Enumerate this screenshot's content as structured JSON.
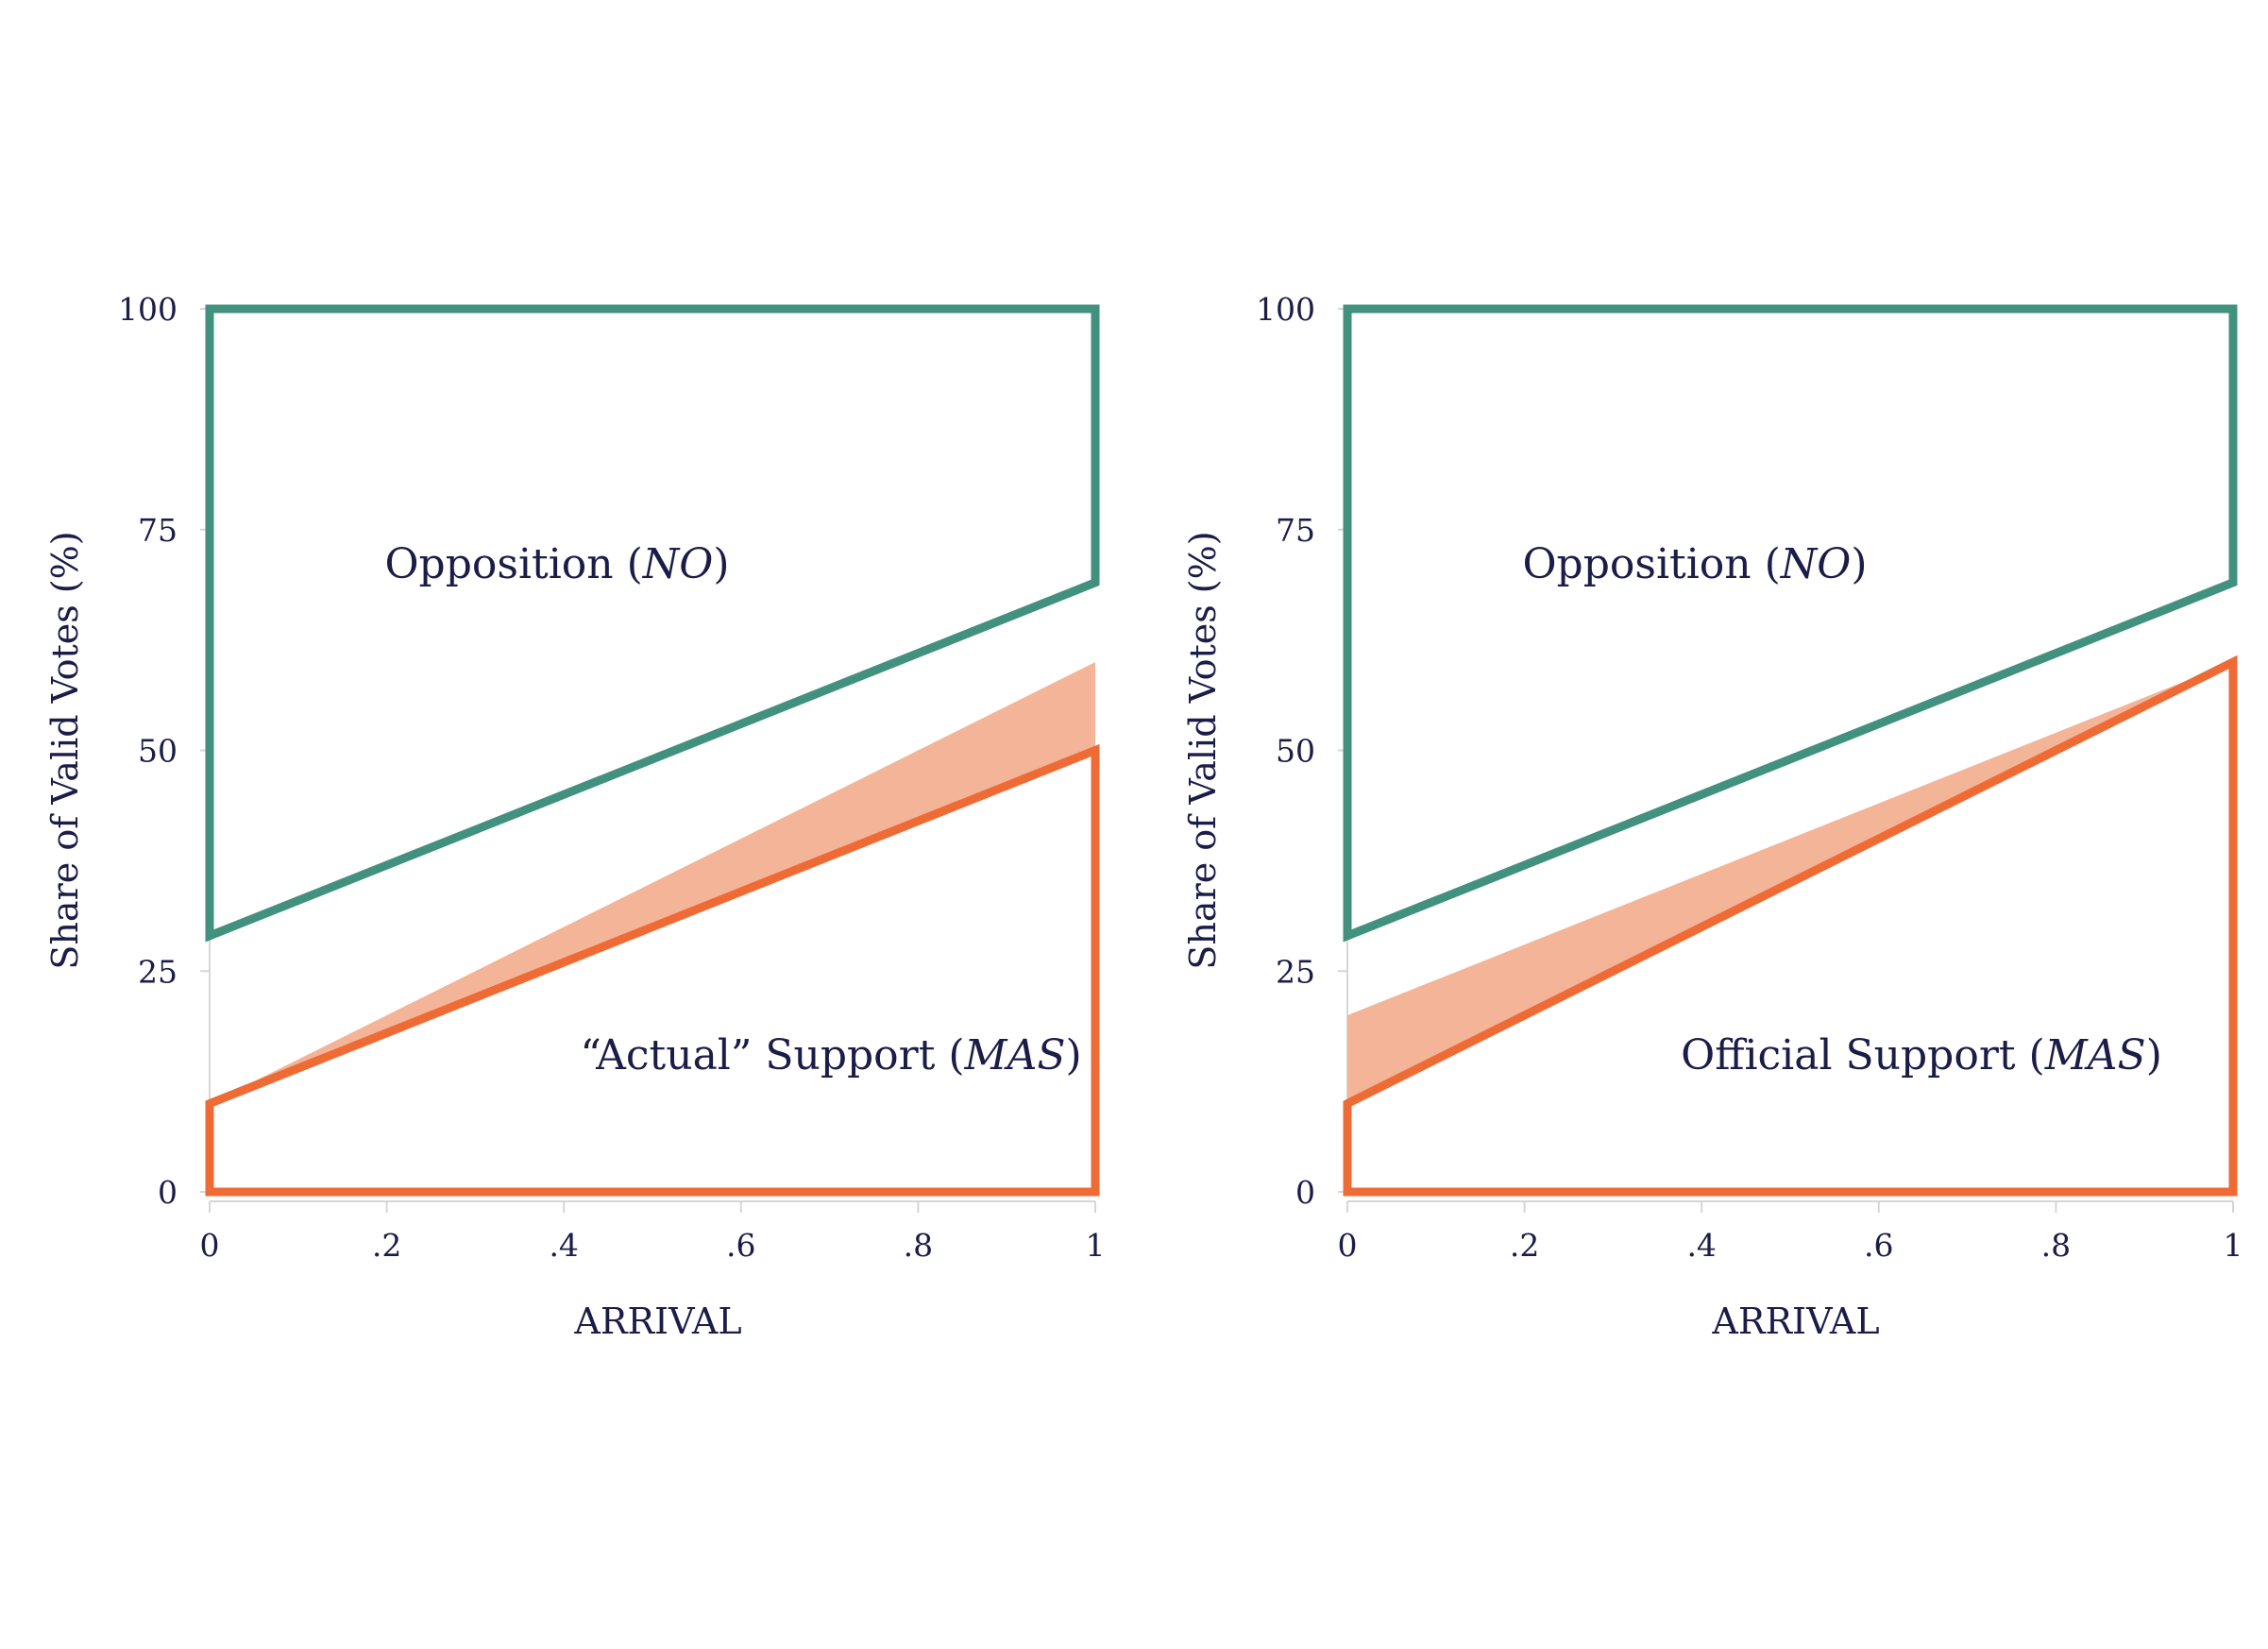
{
  "colors": {
    "opposition": "#42917f",
    "support": "#ef6b35",
    "band": "#f4b497",
    "axis": "#d6d6d6",
    "text": "#1b1c47"
  },
  "chart_data": [
    {
      "type": "area",
      "xlabel": "ARRIVAL",
      "ylabel": "Share of Valid Votes (%)",
      "xlim": [
        0,
        1
      ],
      "ylim": [
        0,
        100
      ],
      "xticks": [
        {
          "value": 0,
          "label": "0"
        },
        {
          "value": 0.2,
          "label": ".2"
        },
        {
          "value": 0.4,
          "label": ".4"
        },
        {
          "value": 0.6,
          "label": ".6"
        },
        {
          "value": 0.8,
          "label": ".8"
        },
        {
          "value": 1,
          "label": "1"
        }
      ],
      "yticks": [
        {
          "value": 0,
          "label": "0"
        },
        {
          "value": 25,
          "label": "25"
        },
        {
          "value": 50,
          "label": "50"
        },
        {
          "value": 75,
          "label": "75"
        },
        {
          "value": 100,
          "label": "100"
        }
      ],
      "grid": false,
      "opposition": {
        "label_main": "Opposition (",
        "label_italic": "NO",
        "label_end": ")",
        "top": 100,
        "bottom_line": [
          [
            0,
            29
          ],
          [
            1,
            69
          ]
        ]
      },
      "support": {
        "label_main": "“Actual” Support (",
        "label_italic": "MAS",
        "label_end": ")",
        "baseline": 0,
        "top_line": [
          [
            0,
            10
          ],
          [
            1,
            50
          ]
        ]
      },
      "band": {
        "lower": [
          [
            0,
            10
          ],
          [
            1,
            50
          ]
        ],
        "upper": [
          [
            0,
            10
          ],
          [
            1,
            60
          ]
        ]
      }
    },
    {
      "type": "area",
      "xlabel": "ARRIVAL",
      "ylabel": "Share of Valid Votes (%)",
      "xlim": [
        0,
        1
      ],
      "ylim": [
        0,
        100
      ],
      "xticks": [
        {
          "value": 0,
          "label": "0"
        },
        {
          "value": 0.2,
          "label": ".2"
        },
        {
          "value": 0.4,
          "label": ".4"
        },
        {
          "value": 0.6,
          "label": ".6"
        },
        {
          "value": 0.8,
          "label": ".8"
        },
        {
          "value": 1,
          "label": "1"
        }
      ],
      "yticks": [
        {
          "value": 0,
          "label": "0"
        },
        {
          "value": 25,
          "label": "25"
        },
        {
          "value": 50,
          "label": "50"
        },
        {
          "value": 75,
          "label": "75"
        },
        {
          "value": 100,
          "label": "100"
        }
      ],
      "grid": false,
      "opposition": {
        "label_main": "Opposition (",
        "label_italic": "NO",
        "label_end": ")",
        "top": 100,
        "bottom_line": [
          [
            0,
            29
          ],
          [
            1,
            69
          ]
        ]
      },
      "support": {
        "label_main": "Official Support (",
        "label_italic": "MAS",
        "label_end": ")",
        "baseline": 0,
        "top_line": [
          [
            0,
            10
          ],
          [
            1,
            60
          ]
        ]
      },
      "band": {
        "lower": [
          [
            0,
            10
          ],
          [
            1,
            60
          ]
        ],
        "upper": [
          [
            0,
            20
          ],
          [
            1,
            60
          ]
        ]
      }
    }
  ]
}
